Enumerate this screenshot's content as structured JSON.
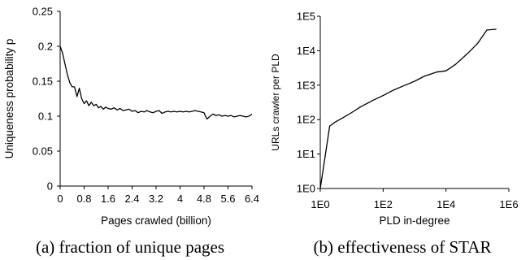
{
  "chart_data": [
    {
      "type": "line",
      "caption": "(a) fraction of unique pages",
      "xlabel": "Pages crawled (billion)",
      "ylabel": "Uniqueness probability p",
      "xlim": [
        0,
        6.4
      ],
      "ylim": [
        0,
        0.25
      ],
      "x_ticks": [
        "0",
        "0.8",
        "1.6",
        "2.4",
        "3.2",
        "4",
        "4.8",
        "5.6",
        "6.4"
      ],
      "y_ticks": [
        "0",
        "0.05",
        "0.1",
        "0.15",
        "0.2",
        "0.25"
      ],
      "grid": false,
      "series": [
        {
          "x": [
            0,
            0.08,
            0.16,
            0.24,
            0.32,
            0.4,
            0.48,
            0.56,
            0.64,
            0.72,
            0.8,
            0.88,
            0.96,
            1.04,
            1.12,
            1.2,
            1.28,
            1.36,
            1.44,
            1.52,
            1.6,
            1.7,
            1.8,
            1.9,
            2.0,
            2.1,
            2.2,
            2.3,
            2.4,
            2.5,
            2.6,
            2.7,
            2.8,
            2.9,
            3.0,
            3.1,
            3.2,
            3.3,
            3.4,
            3.5,
            3.6,
            3.7,
            3.8,
            3.9,
            4.0,
            4.1,
            4.2,
            4.3,
            4.4,
            4.5,
            4.6,
            4.7,
            4.8,
            4.85,
            4.9,
            5.0,
            5.1,
            5.2,
            5.3,
            5.4,
            5.5,
            5.6,
            5.7,
            5.8,
            5.9,
            6.0,
            6.1,
            6.2,
            6.3,
            6.4
          ],
          "y": [
            0.2,
            0.19,
            0.175,
            0.16,
            0.148,
            0.142,
            0.142,
            0.128,
            0.14,
            0.125,
            0.118,
            0.122,
            0.115,
            0.12,
            0.115,
            0.117,
            0.112,
            0.114,
            0.11,
            0.113,
            0.111,
            0.11,
            0.112,
            0.109,
            0.111,
            0.108,
            0.109,
            0.11,
            0.107,
            0.108,
            0.105,
            0.107,
            0.106,
            0.108,
            0.106,
            0.105,
            0.107,
            0.108,
            0.104,
            0.106,
            0.107,
            0.106,
            0.107,
            0.106,
            0.107,
            0.106,
            0.107,
            0.106,
            0.107,
            0.108,
            0.107,
            0.106,
            0.105,
            0.1,
            0.096,
            0.1,
            0.103,
            0.101,
            0.102,
            0.1,
            0.101,
            0.1,
            0.101,
            0.099,
            0.1,
            0.101,
            0.1,
            0.099,
            0.1,
            0.103
          ]
        }
      ]
    },
    {
      "type": "line",
      "caption": "(b) effectiveness of STAR",
      "xlabel": "PLD in-degree",
      "ylabel": "URLs crawler per PLD",
      "x_scale": "log",
      "y_scale": "log",
      "xlim": [
        1,
        1000000
      ],
      "ylim": [
        1,
        100000
      ],
      "x_ticks": [
        "1E0",
        "1E2",
        "1E4",
        "1E6"
      ],
      "y_ticks": [
        "1E0",
        "1E1",
        "1E2",
        "1E3",
        "1E4",
        "1E5"
      ],
      "grid": false,
      "series": [
        {
          "x": [
            1,
            2,
            3,
            5,
            10,
            20,
            50,
            100,
            200,
            500,
            1000,
            2000,
            5000,
            10000,
            20000,
            50000,
            100000,
            200000,
            400000
          ],
          "y": [
            1,
            65,
            85,
            110,
            160,
            240,
            370,
            500,
            700,
            1000,
            1300,
            1800,
            2400,
            2600,
            4000,
            8500,
            16000,
            40000,
            42000
          ]
        }
      ]
    }
  ]
}
